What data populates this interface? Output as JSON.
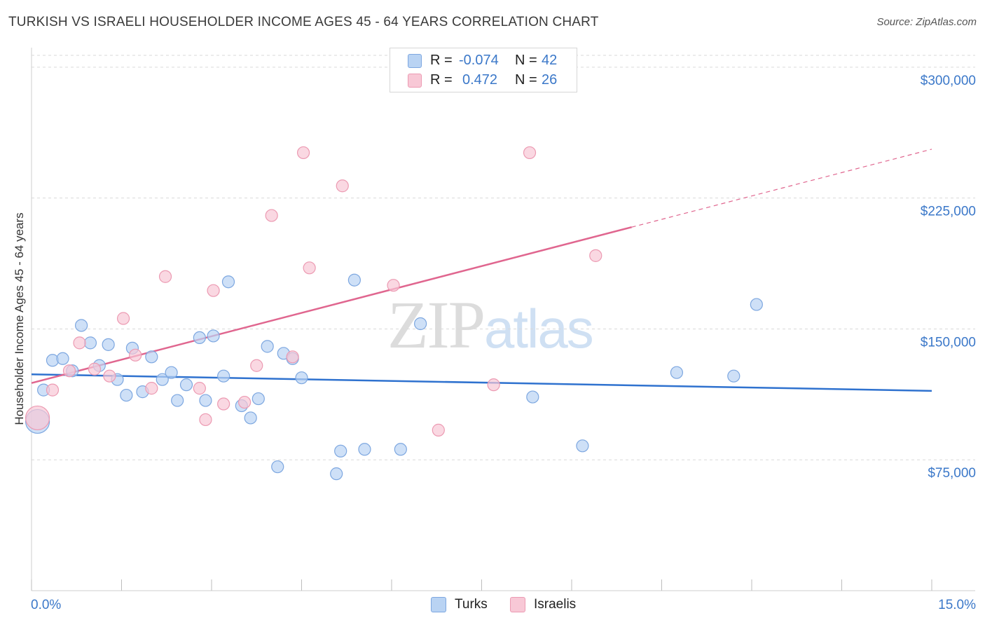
{
  "title": "TURKISH VS ISRAELI HOUSEHOLDER INCOME AGES 45 - 64 YEARS CORRELATION CHART",
  "source": "Source: ZipAtlas.com",
  "watermark": {
    "part1": "ZIP",
    "part2": "atlas"
  },
  "stats": {
    "rows": [
      {
        "r_label": "R =",
        "r_value": "-0.074",
        "n_label": "N =",
        "n_value": "42",
        "series": "Turks"
      },
      {
        "r_label": "R =",
        "r_value": "0.472",
        "n_label": "N =",
        "n_value": "26",
        "series": "Israelis"
      }
    ]
  },
  "legend": {
    "turks": "Turks",
    "israelis": "Israelis"
  },
  "colors": {
    "turks_fill": "#b9d3f3",
    "turks_stroke": "#7da7e0",
    "turks_line": "#2f72cf",
    "israelis_fill": "#f8c8d6",
    "israelis_stroke": "#ec9ab2",
    "israelis_line": "#e0668f",
    "axis_text": "#3b78c9",
    "grid": "#d9d9d9"
  },
  "chart_data": {
    "type": "scatter",
    "title": "TURKISH VS ISRAELI HOUSEHOLDER INCOME AGES 45 - 64 YEARS CORRELATION CHART",
    "xlabel": "",
    "ylabel": "Householder Income Ages 45 - 64 years",
    "xlim": [
      0,
      15
    ],
    "ylim": [
      0,
      310000
    ],
    "x_tick_labels": [
      {
        "value": 0,
        "label": "0.0%"
      },
      {
        "value": 15,
        "label": "15.0%"
      }
    ],
    "y_ticks": [
      75000,
      150000,
      225000,
      300000
    ],
    "y_tick_labels": [
      "$75,000",
      "$150,000",
      "$225,000",
      "$300,000"
    ],
    "series": [
      {
        "name": "Turks",
        "trend": {
          "x0": 0,
          "y0": 124000,
          "x1": 15,
          "y1": 114500,
          "dashed_from": null
        },
        "points": [
          {
            "x": 0.1,
            "y": 97000,
            "size": "large"
          },
          {
            "x": 0.2,
            "y": 115000
          },
          {
            "x": 0.35,
            "y": 132000
          },
          {
            "x": 0.52,
            "y": 133000
          },
          {
            "x": 0.68,
            "y": 126000
          },
          {
            "x": 0.83,
            "y": 152000
          },
          {
            "x": 0.98,
            "y": 142000
          },
          {
            "x": 1.13,
            "y": 129000
          },
          {
            "x": 1.28,
            "y": 141000
          },
          {
            "x": 1.43,
            "y": 121000
          },
          {
            "x": 1.58,
            "y": 112000
          },
          {
            "x": 1.68,
            "y": 139000
          },
          {
            "x": 1.85,
            "y": 114000
          },
          {
            "x": 2.0,
            "y": 134000
          },
          {
            "x": 2.18,
            "y": 121000
          },
          {
            "x": 2.33,
            "y": 125000
          },
          {
            "x": 2.43,
            "y": 109000
          },
          {
            "x": 2.58,
            "y": 118000
          },
          {
            "x": 2.8,
            "y": 145000
          },
          {
            "x": 2.9,
            "y": 109000
          },
          {
            "x": 3.03,
            "y": 146000
          },
          {
            "x": 3.2,
            "y": 123000
          },
          {
            "x": 3.28,
            "y": 177000
          },
          {
            "x": 3.5,
            "y": 106000
          },
          {
            "x": 3.65,
            "y": 99000
          },
          {
            "x": 3.78,
            "y": 110000
          },
          {
            "x": 3.93,
            "y": 140000
          },
          {
            "x": 4.1,
            "y": 71000
          },
          {
            "x": 4.2,
            "y": 136000
          },
          {
            "x": 4.35,
            "y": 133000
          },
          {
            "x": 4.5,
            "y": 122000
          },
          {
            "x": 5.08,
            "y": 67000
          },
          {
            "x": 5.15,
            "y": 80000
          },
          {
            "x": 5.38,
            "y": 178000
          },
          {
            "x": 5.55,
            "y": 81000
          },
          {
            "x": 6.15,
            "y": 81000
          },
          {
            "x": 6.48,
            "y": 153000
          },
          {
            "x": 8.35,
            "y": 111000
          },
          {
            "x": 9.18,
            "y": 83000
          },
          {
            "x": 10.75,
            "y": 125000
          },
          {
            "x": 11.7,
            "y": 123000
          },
          {
            "x": 12.08,
            "y": 164000
          }
        ]
      },
      {
        "name": "Israelis",
        "trend": {
          "x0": 0,
          "y0": 119000,
          "x1": 15,
          "y1": 253000,
          "dashed_from": 10.0
        },
        "points": [
          {
            "x": 0.1,
            "y": 99000,
            "size": "large"
          },
          {
            "x": 0.35,
            "y": 115000
          },
          {
            "x": 0.63,
            "y": 126000
          },
          {
            "x": 0.8,
            "y": 142000
          },
          {
            "x": 1.05,
            "y": 127000
          },
          {
            "x": 1.3,
            "y": 123000
          },
          {
            "x": 1.53,
            "y": 156000
          },
          {
            "x": 1.73,
            "y": 135000
          },
          {
            "x": 2.0,
            "y": 116000
          },
          {
            "x": 2.23,
            "y": 180000
          },
          {
            "x": 2.8,
            "y": 116000
          },
          {
            "x": 2.9,
            "y": 98000
          },
          {
            "x": 3.03,
            "y": 172000
          },
          {
            "x": 3.2,
            "y": 107000
          },
          {
            "x": 3.55,
            "y": 108000
          },
          {
            "x": 3.75,
            "y": 129000
          },
          {
            "x": 4.0,
            "y": 215000
          },
          {
            "x": 4.35,
            "y": 134000
          },
          {
            "x": 4.53,
            "y": 251000
          },
          {
            "x": 4.63,
            "y": 185000
          },
          {
            "x": 5.18,
            "y": 232000
          },
          {
            "x": 6.03,
            "y": 175000
          },
          {
            "x": 6.78,
            "y": 92000
          },
          {
            "x": 7.7,
            "y": 118000
          },
          {
            "x": 8.3,
            "y": 251000
          },
          {
            "x": 9.4,
            "y": 192000
          }
        ]
      }
    ]
  }
}
